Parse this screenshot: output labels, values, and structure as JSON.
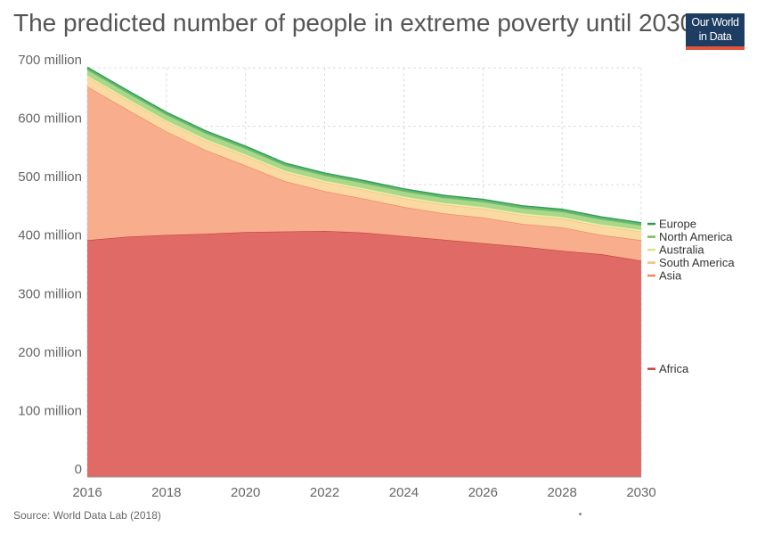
{
  "title": "The predicted number of people in extreme poverty until 2030",
  "logo": {
    "line1": "Our World",
    "line2": "in Data",
    "bg_color": "#1d3d63",
    "bar_color": "#e0553b"
  },
  "source": "Source: World Data Lab (2018)",
  "chart_data": {
    "type": "area",
    "stacked": true,
    "x": [
      2016,
      2017,
      2018,
      2019,
      2020,
      2021,
      2022,
      2023,
      2024,
      2025,
      2026,
      2027,
      2028,
      2029,
      2030
    ],
    "xticks": [
      2016,
      2018,
      2020,
      2022,
      2024,
      2026,
      2028,
      2030
    ],
    "xtick_labels": [
      "2016",
      "2018",
      "2020",
      "2022",
      "2024",
      "2026",
      "2028",
      "2030"
    ],
    "yticks": [
      0,
      100000000,
      200000000,
      300000000,
      400000000,
      500000000,
      600000000,
      700000000
    ],
    "ytick_labels": [
      "0",
      "100 million",
      "200 million",
      "300 million",
      "400 million",
      "500 million",
      "600 million",
      "700 million"
    ],
    "ylim": [
      0,
      700000000
    ],
    "xlim": [
      2016,
      2030
    ],
    "grid": true,
    "legend_position": "right",
    "series": [
      {
        "name": "Africa",
        "color": "#e06b66",
        "line_color": "#c9423c",
        "values": [
          405000000,
          411000000,
          414000000,
          416000000,
          419000000,
          420000000,
          421000000,
          418000000,
          412000000,
          406000000,
          400000000,
          394000000,
          387000000,
          381000000,
          370000000
        ]
      },
      {
        "name": "Asia",
        "color": "#f8ad8d",
        "line_color": "#ee8a62",
        "values": [
          263000000,
          218000000,
          177000000,
          143000000,
          114000000,
          86000000,
          68000000,
          58000000,
          50000000,
          45000000,
          44000000,
          39000000,
          40000000,
          33000000,
          35000000
        ]
      },
      {
        "name": "South America",
        "color": "#fbd9a3",
        "line_color": "#f3c07a",
        "values": [
          16000000,
          16000000,
          16000000,
          16000000,
          16000000,
          15000000,
          15000000,
          15000000,
          15000000,
          15000000,
          15000000,
          15000000,
          15000000,
          15000000,
          15000000
        ]
      },
      {
        "name": "Australia",
        "color": "#ecf0b2",
        "line_color": "#dde38a",
        "values": [
          3000000,
          3000000,
          3000000,
          3000000,
          3000000,
          3000000,
          3000000,
          3000000,
          3000000,
          3000000,
          3000000,
          3000000,
          3000000,
          3000000,
          3000000
        ]
      },
      {
        "name": "North America",
        "color": "#a9d78b",
        "line_color": "#78c050",
        "values": [
          10000000,
          10000000,
          10000000,
          10000000,
          10000000,
          9000000,
          9000000,
          9000000,
          9000000,
          9000000,
          9000000,
          9000000,
          9000000,
          9000000,
          8000000
        ]
      },
      {
        "name": "Europe",
        "color": "#62b879",
        "line_color": "#2f9a4f",
        "values": [
          4000000,
          4000000,
          4000000,
          4000000,
          4000000,
          4000000,
          4000000,
          4000000,
          4000000,
          4000000,
          4000000,
          4000000,
          4000000,
          4000000,
          4000000
        ]
      }
    ],
    "legend_order": [
      "Europe",
      "North America",
      "Australia",
      "South America",
      "Asia",
      "Africa"
    ]
  }
}
